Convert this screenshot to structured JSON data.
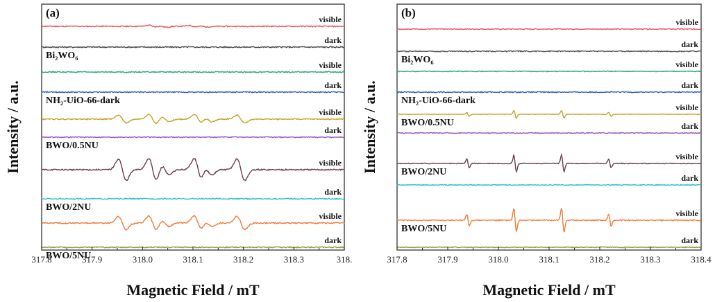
{
  "chart_data": [
    {
      "type": "line",
      "panel_label": "(a)",
      "xlabel": "Magnetic Field / mT",
      "ylabel": "Intensity / a.u.",
      "xlim": [
        317.8,
        318.4
      ],
      "x_ticks": [
        "317.8",
        "317.9",
        "318.0",
        "318.1",
        "318.2",
        "318.3",
        "318."
      ],
      "grid": false,
      "legend": "none",
      "series": [
        {
          "condition": "visible",
          "color": "#e8545a",
          "sample_label": "",
          "peaks": [
            {
              "x": 318.02,
              "a": 0.35
            },
            {
              "x": 318.04,
              "a": 0.3
            },
            {
              "x": 318.1,
              "a": 0.25
            },
            {
              "x": 318.12,
              "a": 0.2
            }
          ],
          "noise": 0.05
        },
        {
          "condition": "dark",
          "color": "#4a4a4a",
          "sample_label": "Bi₂WO₆",
          "peaks": [],
          "noise": 0.06
        },
        {
          "condition": "visible",
          "color": "#27a87a",
          "sample_label": "",
          "peaks": [],
          "noise": 0.05
        },
        {
          "condition": "dark",
          "color": "#2c5fbf",
          "sample_label": "NH₂-UiO-66-dark",
          "peaks": [],
          "noise": 0.05
        },
        {
          "condition": "visible",
          "color": "#c9a227",
          "sample_label": "",
          "peaks": [
            {
              "x": 317.96,
              "a": 1.3
            },
            {
              "x": 318.02,
              "a": 1.6
            },
            {
              "x": 318.045,
              "a": 0.9
            },
            {
              "x": 318.11,
              "a": 1.6
            },
            {
              "x": 318.13,
              "a": 0.9
            },
            {
              "x": 318.195,
              "a": 1.3
            }
          ],
          "noise": 0.05
        },
        {
          "condition": "dark",
          "color": "#9b59b6",
          "sample_label": "BWO/0.5NU",
          "peaks": [],
          "noise": 0.04
        },
        {
          "condition": "visible",
          "color": "#6e3b4a",
          "sample_label": "",
          "peaks": [
            {
              "x": 317.96,
              "a": 3.6
            },
            {
              "x": 318.02,
              "a": 3.8
            },
            {
              "x": 318.045,
              "a": 1.8
            },
            {
              "x": 318.11,
              "a": 3.8
            },
            {
              "x": 318.13,
              "a": 1.8
            },
            {
              "x": 318.195,
              "a": 3.6
            }
          ],
          "noise": 0.06
        },
        {
          "condition": "dark",
          "color": "#2abfc9",
          "sample_label": "BWO/2NU",
          "peaks": [],
          "noise": 0.05
        },
        {
          "condition": "visible",
          "color": "#f07a3a",
          "sample_label": "",
          "peaks": [
            {
              "x": 317.96,
              "a": 2.2
            },
            {
              "x": 318.02,
              "a": 2.4
            },
            {
              "x": 318.045,
              "a": 1.1
            },
            {
              "x": 318.11,
              "a": 2.4
            },
            {
              "x": 318.13,
              "a": 1.1
            },
            {
              "x": 318.195,
              "a": 2.2
            }
          ],
          "noise": 0.06
        },
        {
          "condition": "dark",
          "color": "#8a9a2a",
          "sample_label": "BWO/5NU",
          "peaks": [],
          "noise": 0.05
        }
      ]
    },
    {
      "type": "line",
      "panel_label": "(b)",
      "xlabel": "Magnetic Field / mT",
      "ylabel": "Intensity / a.u.",
      "xlim": [
        317.8,
        318.4
      ],
      "x_ticks": [
        "317.8",
        "317.9",
        "318.0",
        "318.1",
        "318.2",
        "318.3",
        "318.4"
      ],
      "grid": false,
      "legend": "none",
      "series": [
        {
          "condition": "visible",
          "color": "#e8545a",
          "sample_label": "",
          "peaks": [],
          "noise": 0.04
        },
        {
          "condition": "dark",
          "color": "#4a4a4a",
          "sample_label": "Bi₂WO₆",
          "peaks": [],
          "noise": 0.05
        },
        {
          "condition": "visible",
          "color": "#27a87a",
          "sample_label": "",
          "peaks": [],
          "noise": 0.04
        },
        {
          "condition": "dark",
          "color": "#2c5fbf",
          "sample_label": "NH₂-UiO-66-dark",
          "peaks": [],
          "noise": 0.05
        },
        {
          "condition": "visible",
          "color": "#c9a227",
          "sample_label": "BWO/0.5NU",
          "peaks": [
            {
              "x": 317.94,
              "a": 0.7
            },
            {
              "x": 318.033,
              "a": 1.3
            },
            {
              "x": 318.127,
              "a": 1.3
            },
            {
              "x": 318.22,
              "a": 0.7
            }
          ],
          "noise": 0.03
        },
        {
          "condition": "dark",
          "color": "#9b59b6",
          "sample_label": "",
          "peaks": [],
          "noise": 0.04
        },
        {
          "condition": "visible",
          "color": "#6e3b4a",
          "sample_label": "BWO/2NU",
          "peaks": [
            {
              "x": 317.94,
              "a": 1.5
            },
            {
              "x": 318.033,
              "a": 2.8
            },
            {
              "x": 318.127,
              "a": 2.8
            },
            {
              "x": 318.22,
              "a": 1.5
            }
          ],
          "noise": 0.04
        },
        {
          "condition": "dark",
          "color": "#2abfc9",
          "sample_label": "",
          "peaks": [],
          "noise": 0.04
        },
        {
          "condition": "visible",
          "color": "#f07a3a",
          "sample_label": "BWO/5NU",
          "peaks": [
            {
              "x": 317.94,
              "a": 2.0
            },
            {
              "x": 318.033,
              "a": 4.0
            },
            {
              "x": 318.127,
              "a": 4.0
            },
            {
              "x": 318.22,
              "a": 2.0
            }
          ],
          "noise": 0.05
        },
        {
          "condition": "dark",
          "color": "#8a9a2a",
          "sample_label": "",
          "peaks": [],
          "noise": 0.04
        }
      ]
    }
  ]
}
